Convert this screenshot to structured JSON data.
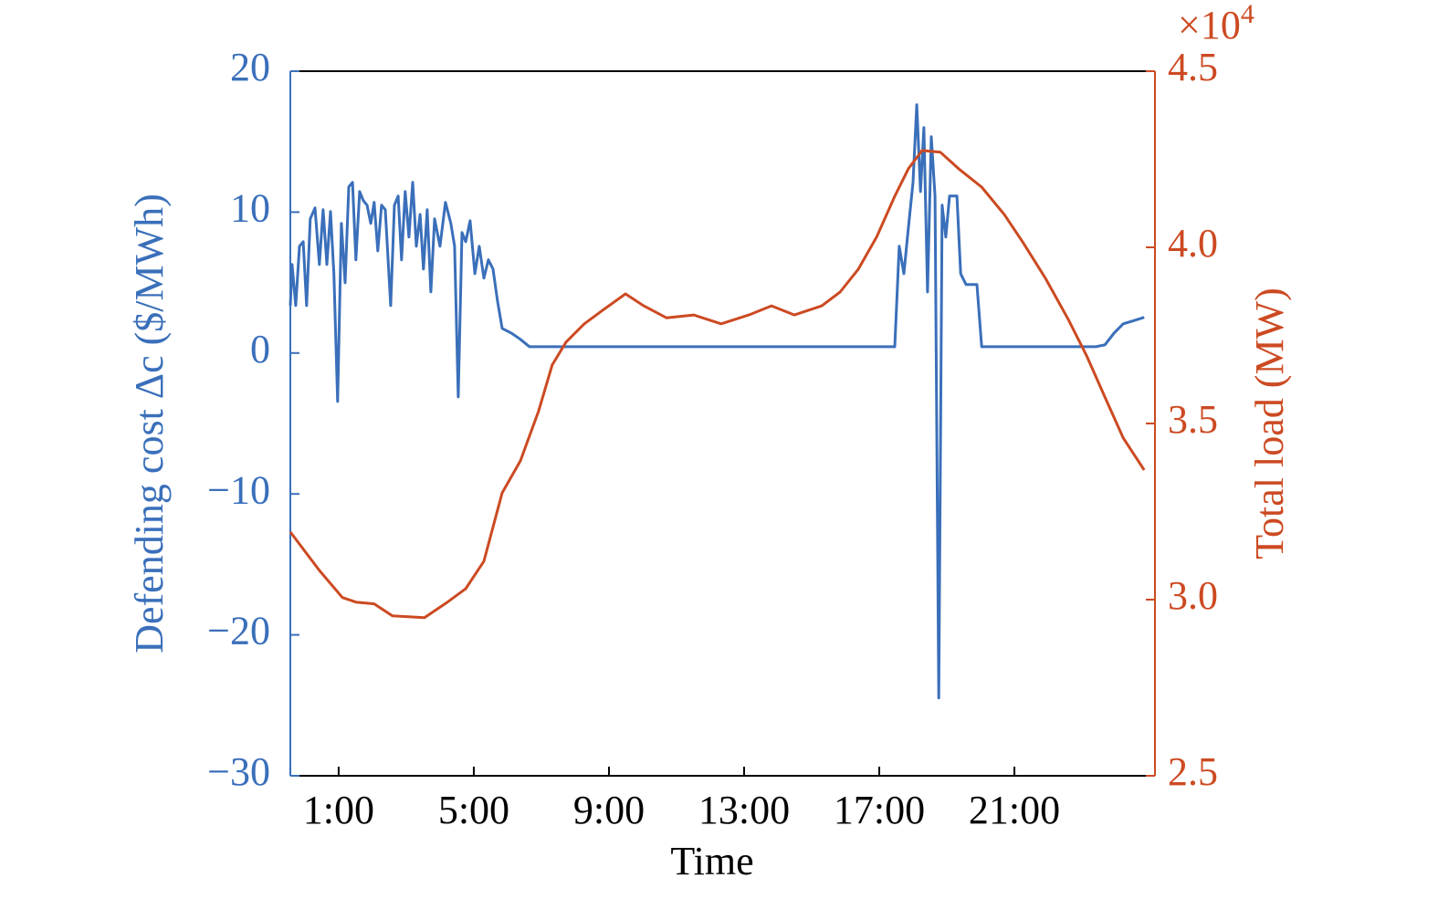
{
  "chart_data": {
    "type": "line",
    "x_label": "Time",
    "y_label": "Defending cost Δc ($/MWh)",
    "y2_label": "Total load (MW)",
    "y2_multiplier": "×10",
    "y2_multiplier_exponent": "4",
    "xlim": [
      -0.43,
      25.16
    ],
    "xticks": [
      {
        "value": 1,
        "label": "1:00"
      },
      {
        "value": 5,
        "label": "5:00"
      },
      {
        "value": 9,
        "label": "9:00"
      },
      {
        "value": 13,
        "label": "13:00"
      },
      {
        "value": 17,
        "label": "17:00"
      },
      {
        "value": 21,
        "label": "21:00"
      }
    ],
    "ylim": [
      -30,
      20
    ],
    "yticks": [
      {
        "value": -30,
        "label": "−30"
      },
      {
        "value": -20,
        "label": "−20"
      },
      {
        "value": -10,
        "label": "−10"
      },
      0,
      10,
      20
    ],
    "y2lim": [
      25000,
      45000
    ],
    "y2ticks": [
      {
        "value": 25000,
        "label": "2.5"
      },
      {
        "value": 30000,
        "label": "3.0"
      },
      {
        "value": 35000,
        "label": "3.5"
      },
      {
        "value": 40000,
        "label": "4.0"
      },
      {
        "value": 45000,
        "label": "4.5"
      }
    ],
    "series": [
      {
        "color": "#3a6fba",
        "axis": "y",
        "x": [
          -0.43,
          -0.38,
          -0.27,
          -0.16,
          -0.05,
          0.05,
          0.16,
          0.3,
          0.43,
          0.54,
          0.65,
          0.76,
          0.86,
          0.97,
          1.08,
          1.19,
          1.3,
          1.41,
          1.51,
          1.62,
          1.73,
          1.84,
          1.95,
          2.05,
          2.16,
          2.27,
          2.38,
          2.54,
          2.65,
          2.76,
          2.86,
          2.97,
          3.08,
          3.19,
          3.3,
          3.41,
          3.51,
          3.62,
          3.73,
          3.84,
          4.0,
          4.16,
          4.32,
          4.43,
          4.54,
          4.65,
          4.76,
          4.89,
          5.03,
          5.16,
          5.3,
          5.43,
          5.57,
          5.7,
          5.84,
          6.11,
          6.38,
          6.65,
          17.19,
          17.46,
          17.59,
          17.73,
          17.86,
          18.0,
          18.11,
          18.22,
          18.32,
          18.43,
          18.54,
          18.65,
          18.76,
          18.86,
          18.97,
          19.08,
          19.22,
          19.3,
          19.41,
          19.57,
          19.89,
          20.03,
          20.16,
          23.41,
          23.68,
          23.95,
          24.22,
          24.49,
          24.84
        ],
        "values": [
          3.37,
          6.28,
          3.37,
          7.58,
          7.9,
          3.37,
          9.52,
          10.3,
          6.28,
          10.17,
          6.28,
          10.04,
          5.63,
          -3.43,
          9.2,
          4.99,
          11.79,
          12.11,
          6.61,
          11.46,
          10.82,
          10.49,
          9.2,
          10.69,
          7.25,
          10.49,
          10.17,
          3.37,
          10.49,
          11.14,
          6.61,
          11.46,
          8.23,
          12.11,
          7.58,
          9.84,
          5.96,
          10.17,
          4.34,
          9.52,
          7.58,
          10.69,
          9.2,
          7.58,
          -3.11,
          8.55,
          7.9,
          9.39,
          5.63,
          7.58,
          5.31,
          6.61,
          5.96,
          3.69,
          1.75,
          1.42,
          0.97,
          0.45,
          0.45,
          0.45,
          7.58,
          5.63,
          8.87,
          12.11,
          17.62,
          11.46,
          16.0,
          4.34,
          15.35,
          11.14,
          -24.48,
          10.49,
          8.23,
          11.14,
          11.14,
          11.14,
          5.63,
          4.86,
          4.86,
          0.45,
          0.45,
          0.45,
          0.58,
          1.42,
          2.07,
          2.27,
          2.53
        ]
      },
      {
        "color": "#cc4a22",
        "axis": "y2",
        "x": [
          -0.43,
          0.43,
          1.11,
          1.51,
          2.05,
          2.59,
          3.54,
          4.22,
          4.76,
          5.3,
          5.84,
          6.38,
          6.92,
          7.32,
          7.73,
          8.27,
          8.81,
          9.49,
          10.03,
          10.7,
          11.51,
          12.32,
          13.14,
          13.81,
          14.49,
          15.3,
          15.84,
          16.38,
          16.92,
          17.46,
          17.86,
          18.27,
          18.81,
          19.35,
          20.03,
          20.7,
          21.24,
          21.92,
          22.59,
          23.14,
          23.68,
          24.22,
          24.84
        ],
        "values": [
          31920,
          30830,
          30060,
          29930,
          29880,
          29540,
          29490,
          29930,
          30310,
          31090,
          33030,
          33940,
          35360,
          36660,
          37310,
          37830,
          38210,
          38680,
          38340,
          38000,
          38080,
          37830,
          38080,
          38340,
          38080,
          38340,
          38730,
          39380,
          40290,
          41450,
          42230,
          42750,
          42700,
          42230,
          41710,
          40930,
          40160,
          39120,
          37960,
          36920,
          35750,
          34590,
          33680
        ]
      }
    ]
  }
}
